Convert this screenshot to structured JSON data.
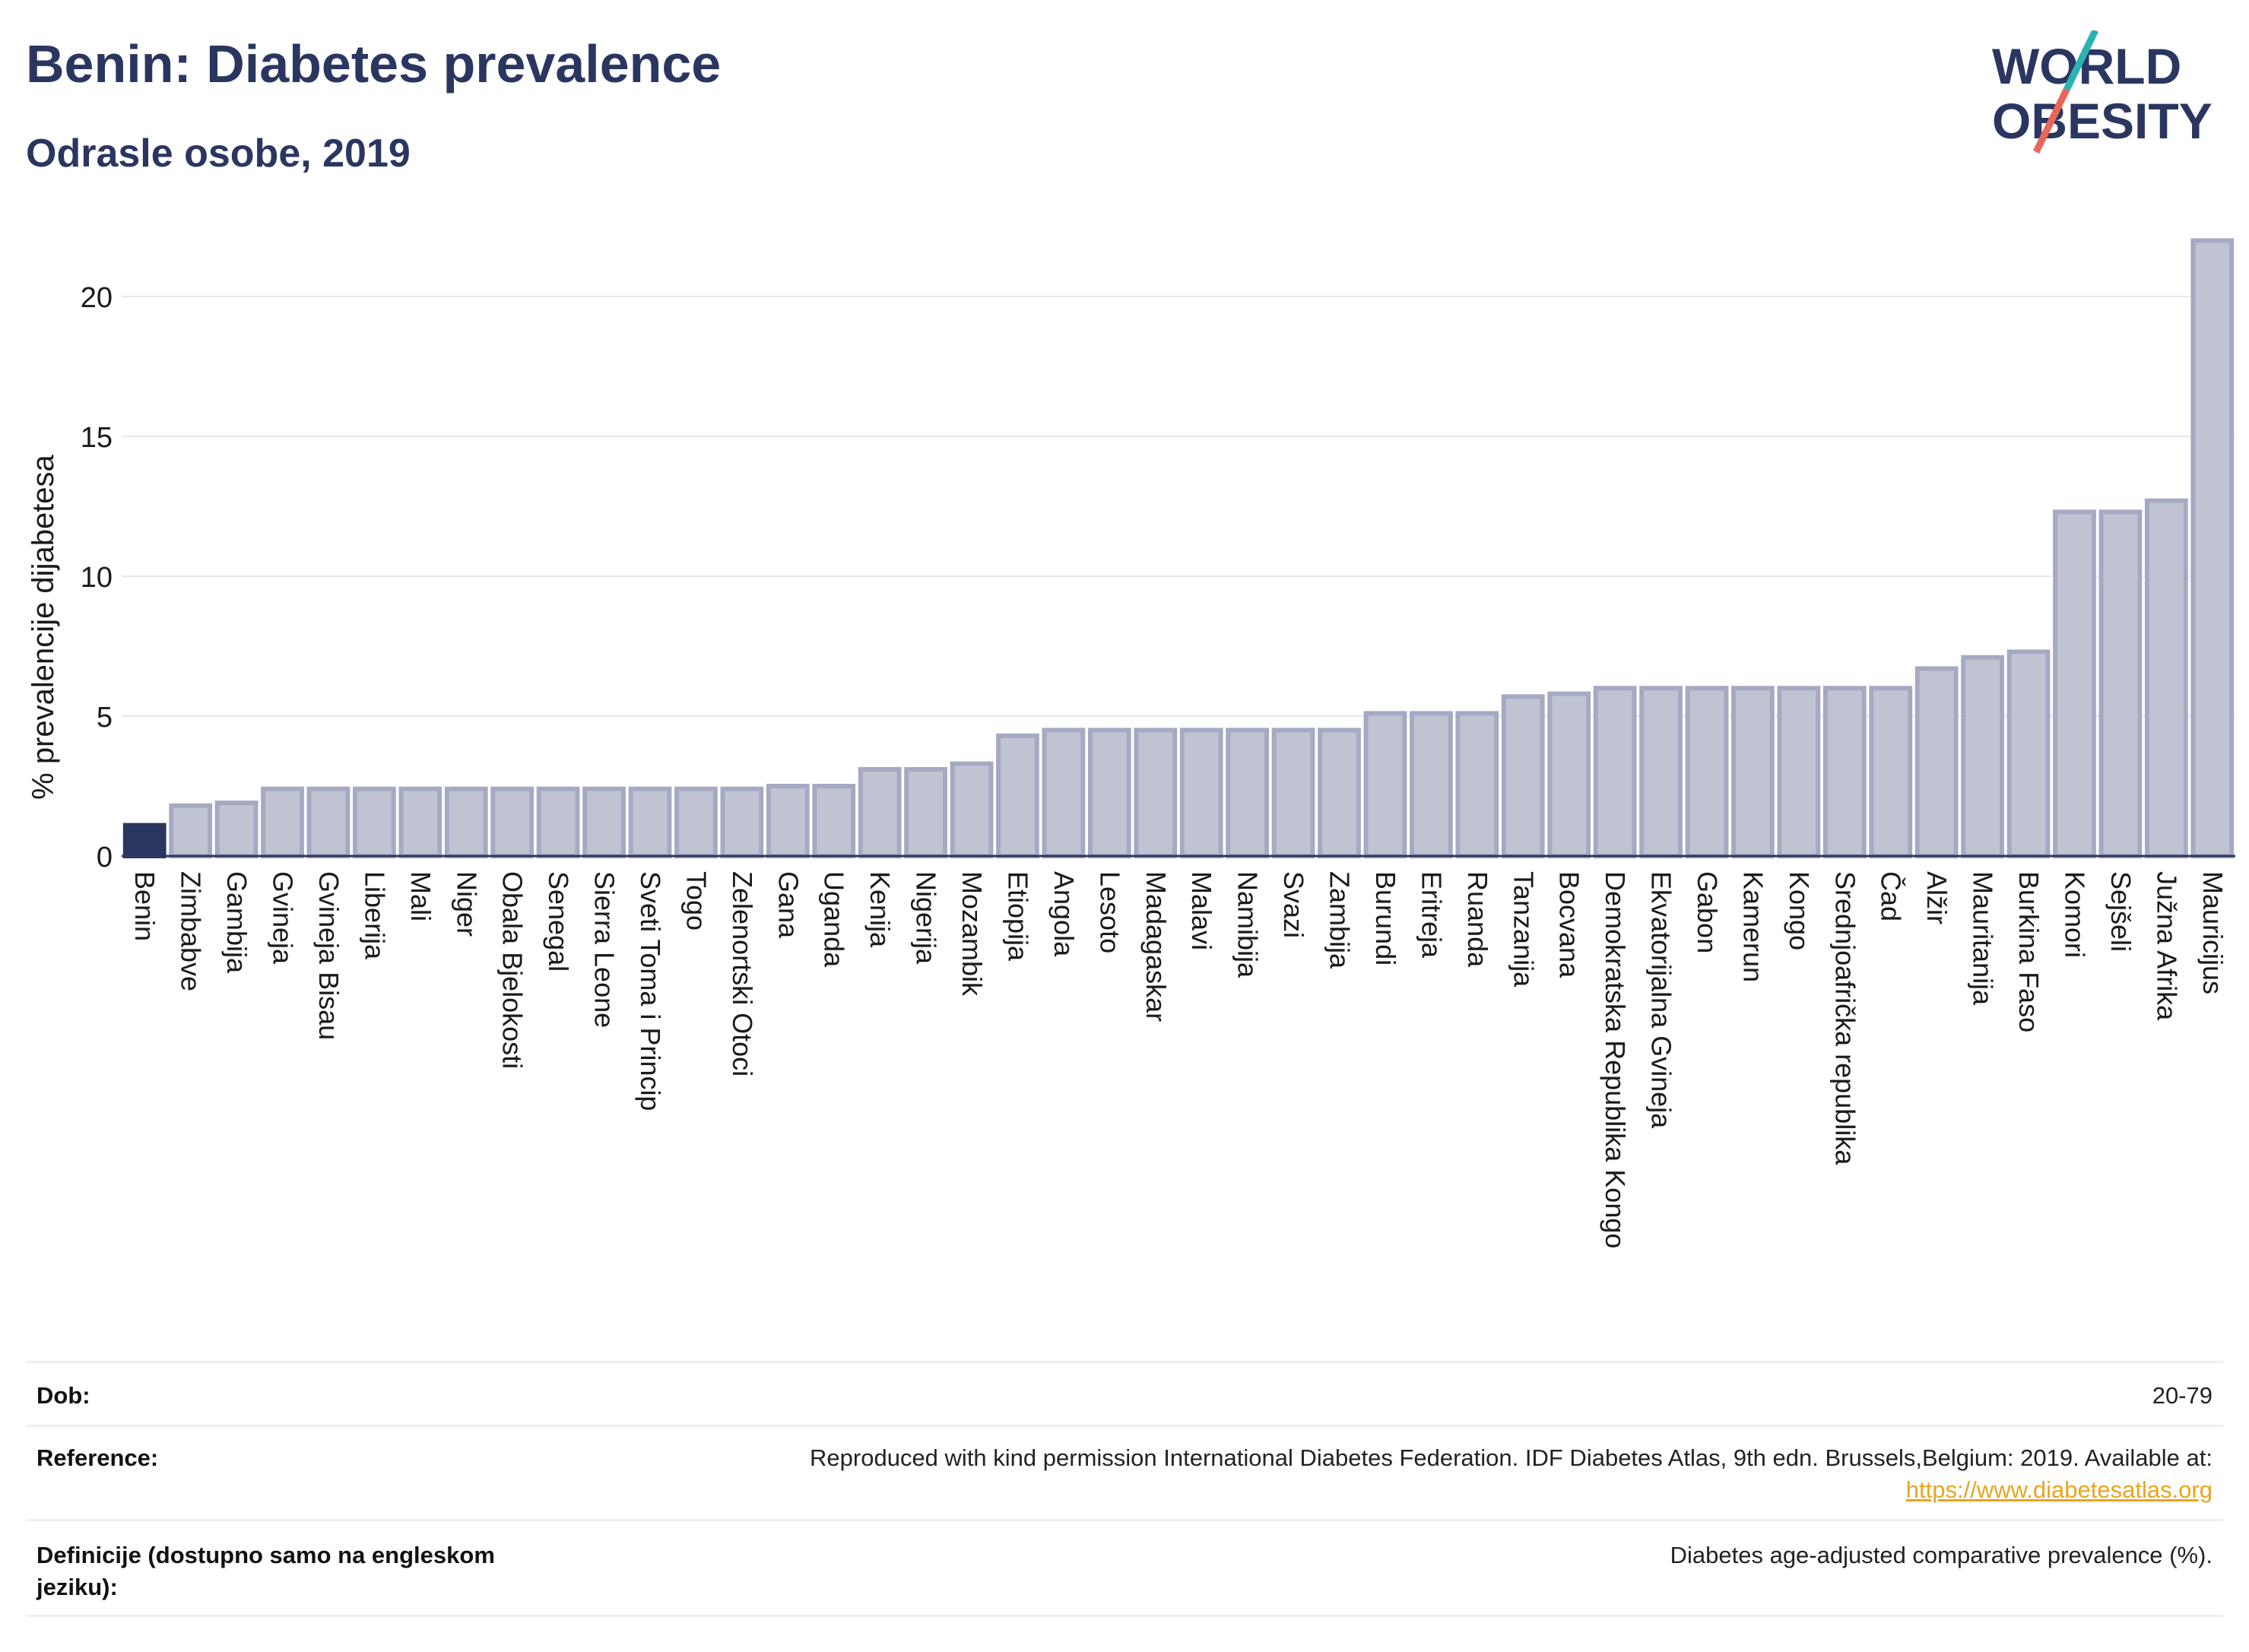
{
  "header": {
    "title": "Benin: Diabetes prevalence",
    "subtitle": "Odrasle osobe, 2019",
    "logo_line1": "WORLD",
    "logo_line2": "OBESITY"
  },
  "colors": {
    "title": "#2b3660",
    "highlight_bar": "#2b3660",
    "bar_fill": "#c0c4d2",
    "bar_stroke": "#a5aac2",
    "grid": "#e6e8ef",
    "logo_teal": "#2ab3b1",
    "logo_coral": "#e8665a",
    "link": "#e8a520"
  },
  "chart_data": {
    "type": "bar",
    "title": "Benin: Diabetes prevalence",
    "subtitle": "Odrasle osobe, 2019",
    "xlabel": "",
    "ylabel": "% prevalencije dijabetesa",
    "ylim": [
      0,
      22.5
    ],
    "yticks": [
      0,
      5,
      10,
      15,
      20
    ],
    "grid": true,
    "highlight": "Benin",
    "categories": [
      "Benin",
      "Zimbabve",
      "Gambija",
      "Gvineja",
      "Gvineja Bisau",
      "Liberija",
      "Mali",
      "Niger",
      "Obala Bjelokosti",
      "Senegal",
      "Sierra Leone",
      "Sveti Toma i Princip",
      "Togo",
      "Zelenortski Otoci",
      "Gana",
      "Uganda",
      "Kenija",
      "Nigerija",
      "Mozambik",
      "Etiopija",
      "Angola",
      "Lesoto",
      "Madagaskar",
      "Malavi",
      "Namibija",
      "Svazi",
      "Zambija",
      "Burundi",
      "Eritreja",
      "Ruanda",
      "Tanzanija",
      "Bocvana",
      "Demokratska Republika Kongo",
      "Ekvatorijalna Gvineja",
      "Gabon",
      "Kamerun",
      "Kongo",
      "Srednjoafrička republika",
      "Čad",
      "Alžir",
      "Mauritanija",
      "Burkina Faso",
      "Komori",
      "Sejšeli",
      "Južna Afrika",
      "Mauricijus"
    ],
    "values": [
      1.1,
      1.8,
      1.9,
      2.4,
      2.4,
      2.4,
      2.4,
      2.4,
      2.4,
      2.4,
      2.4,
      2.4,
      2.4,
      2.4,
      2.5,
      2.5,
      3.1,
      3.1,
      3.3,
      4.3,
      4.5,
      4.5,
      4.5,
      4.5,
      4.5,
      4.5,
      4.5,
      5.1,
      5.1,
      5.1,
      5.7,
      5.8,
      6.0,
      6.0,
      6.0,
      6.0,
      6.0,
      6.0,
      6.0,
      6.7,
      7.1,
      7.3,
      12.3,
      12.3,
      12.7,
      22.0
    ]
  },
  "info": {
    "rows": [
      {
        "label": "Dob:",
        "value": "20-79"
      },
      {
        "label": "Reference:",
        "value": "Reproduced with kind permission International Diabetes Federation. IDF Diabetes Atlas, 9th edn. Brussels,Belgium: 2019. Available at:",
        "link": "https://www.diabetesatlas.org"
      },
      {
        "label": "Definicije (dostupno samo na engleskom jeziku):",
        "value": "Diabetes age-adjusted comparative prevalence (%)."
      }
    ]
  }
}
